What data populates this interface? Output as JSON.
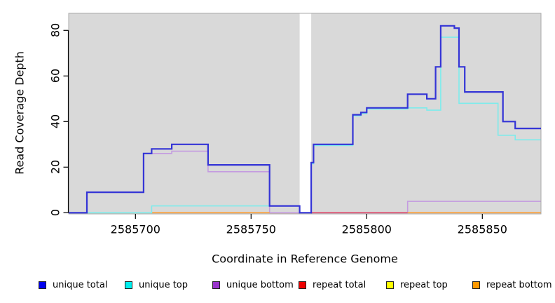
{
  "chart_data": {
    "type": "line",
    "subtype": "step-coverage",
    "title": "",
    "xlabel": "Coordinate in Reference Genome",
    "ylabel": "Read Coverage Depth",
    "panel_bg": "#d9d9d9",
    "x_range": [
      2585671,
      2585875
    ],
    "y_range": [
      0,
      87
    ],
    "x_ticks": [
      2585700,
      2585750,
      2585800,
      2585850
    ],
    "x_tick_labels": [
      "2585700",
      "2585750",
      "2585800",
      "2585850"
    ],
    "y_ticks": [
      0,
      20,
      40,
      60,
      80
    ],
    "y_tick_labels": [
      "0",
      "20",
      "40",
      "60",
      "80"
    ],
    "grid": false,
    "legend_position": "bottom",
    "masked_region": {
      "from": 2585771,
      "to": 2585776,
      "color": "#ffffff"
    },
    "series": [
      {
        "name": "repeat_top",
        "legend_label": "repeat top",
        "line_color": "#ffff00",
        "points": [
          [
            2585679,
            0
          ],
          [
            2585875.4,
            0
          ]
        ]
      },
      {
        "name": "repeat_total",
        "legend_label": "repeat total",
        "line_color": "#dd4466",
        "points": [
          [
            2585776,
            0
          ],
          [
            2585875.4,
            0
          ]
        ]
      },
      {
        "name": "repeat_bottom",
        "legend_label": "repeat bottom",
        "line_color": "#ff9d2e",
        "points": [
          [
            2585707,
            0
          ],
          [
            2585875.4,
            0
          ]
        ]
      },
      {
        "name": "unique_bottom",
        "legend_label": "unique bottom",
        "line_color": "#c49be0",
        "points": [
          [
            2585671,
            0
          ],
          [
            2585679,
            9
          ],
          [
            2585703.5,
            26
          ],
          [
            2585715.7,
            27
          ],
          [
            2585731.4,
            18
          ],
          [
            2585758,
            0
          ],
          [
            2585817.7,
            5
          ],
          [
            2585875.4,
            5
          ]
        ]
      },
      {
        "name": "unique_top",
        "legend_label": "unique top",
        "line_color": "#7debeb",
        "points": [
          [
            2585671,
            0
          ],
          [
            2585707,
            3
          ],
          [
            2585771,
            3
          ],
          [
            2585776,
            21.5
          ],
          [
            2585777,
            29.5
          ],
          [
            2585794,
            42.5
          ],
          [
            2585797.5,
            43.5
          ],
          [
            2585800,
            45.5
          ],
          [
            2585817.7,
            46
          ],
          [
            2585826,
            45
          ],
          [
            2585832,
            77
          ],
          [
            2585839.9,
            48
          ],
          [
            2585856.8,
            34
          ],
          [
            2585864.2,
            32
          ],
          [
            2585875.4,
            32
          ]
        ]
      },
      {
        "name": "unique_total",
        "legend_label": "unique total",
        "line_color": "#3434d6",
        "points": [
          [
            2585671,
            0
          ],
          [
            2585679,
            9
          ],
          [
            2585703.5,
            26
          ],
          [
            2585707,
            28
          ],
          [
            2585715.7,
            30
          ],
          [
            2585731.4,
            21
          ],
          [
            2585758,
            3
          ],
          [
            2585771,
            0
          ],
          [
            2585776,
            22
          ],
          [
            2585777,
            30
          ],
          [
            2585794,
            43
          ],
          [
            2585797.5,
            44
          ],
          [
            2585800,
            46
          ],
          [
            2585817.7,
            52
          ],
          [
            2585826,
            50
          ],
          [
            2585829.8,
            64
          ],
          [
            2585832,
            82
          ],
          [
            2585837.9,
            81
          ],
          [
            2585839.9,
            64
          ],
          [
            2585842.4,
            53
          ],
          [
            2585858.9,
            40
          ],
          [
            2585864.2,
            37
          ],
          [
            2585875.4,
            37
          ]
        ]
      }
    ],
    "zero_line_segments": [
      {
        "color": "#9fdd9f",
        "from": 2585679,
        "to": 2585707
      },
      {
        "color": "#ff9d2e",
        "from": 2585707,
        "to": 2585771
      },
      {
        "color": "#c49be0",
        "from": 2585758,
        "to": 2585771
      },
      {
        "color": "#dd4466",
        "from": 2585776,
        "to": 2585817.7
      },
      {
        "color": "#ff9d2e",
        "from": 2585817.7,
        "to": 2585875.4
      }
    ]
  },
  "legend": [
    {
      "label": "unique total",
      "color": "#0000ee"
    },
    {
      "label": "unique top",
      "color": "#00eeee"
    },
    {
      "label": "unique bottom",
      "color": "#9933cc"
    },
    {
      "label": "repeat total",
      "color": "#ee0000"
    },
    {
      "label": "repeat top",
      "color": "#ffff00"
    },
    {
      "label": "repeat bottom",
      "color": "#ff9900"
    }
  ]
}
